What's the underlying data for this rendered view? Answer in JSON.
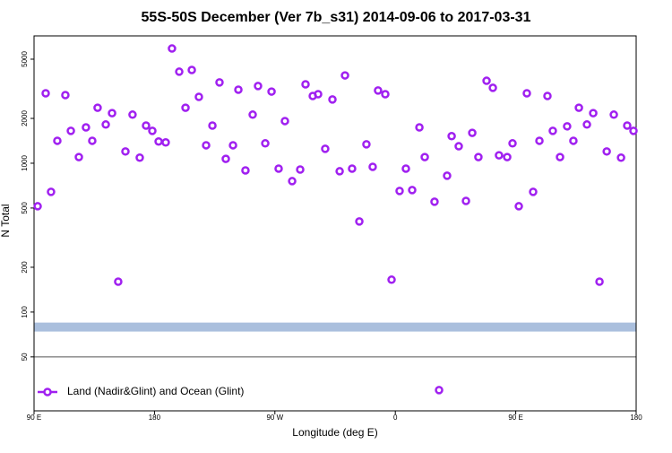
{
  "chart_data": {
    "type": "scatter",
    "title": "55S-50S December (Ver 7b_s31)   2014-09-06 to 2017-03-31",
    "x_label": "Longitude (deg E)",
    "y_label": "N Total",
    "log_y": true,
    "legend_position": "lower left",
    "xlim": [
      90,
      540
    ],
    "xticks": [
      {
        "value": 90,
        "label": "90 E"
      },
      {
        "value": 180,
        "label": "180"
      },
      {
        "value": 270,
        "label": "90 W"
      },
      {
        "value": 360,
        "label": "0"
      },
      {
        "value": 450,
        "label": "90 E"
      },
      {
        "value": 540,
        "label": "180"
      }
    ],
    "ylim": [
      21.7,
      7170
    ],
    "yticks": [
      50,
      100,
      200,
      500,
      1000,
      2000,
      5000
    ],
    "hline": 50,
    "band": {
      "ymin": 74,
      "ymax": 85,
      "color": "#aabfdd"
    },
    "series": [
      {
        "name": "Land (Nadir&Glint) and Ocean (Glint)",
        "color": "#a020f0",
        "x": [
          92.7,
          98.7,
          102.7,
          107.4,
          113.4,
          117.5,
          123.5,
          128.8,
          133.5,
          137.5,
          143.6,
          148.3,
          152.9,
          158.3,
          163.6,
          169.0,
          173.7,
          178.4,
          183.1,
          188.4,
          193.1,
          198.5,
          203.2,
          207.9,
          213.2,
          218.6,
          223.3,
          228.6,
          233.3,
          238.7,
          242.7,
          248.0,
          253.4,
          257.4,
          262.8,
          267.5,
          272.8,
          277.5,
          282.9,
          288.9,
          292.9,
          298.3,
          302.3,
          307.6,
          313.0,
          318.4,
          322.4,
          327.7,
          333.1,
          338.4,
          343.1,
          347.1,
          352.5,
          357.2,
          363.2,
          367.9,
          372.6,
          378.0,
          382.0,
          389.3,
          392.7,
          398.7,
          402.1,
          407.4,
          412.8,
          417.5,
          422.1,
          428.2,
          432.9,
          437.5,
          443.6,
          447.6,
          452.3,
          458.3,
          463.0,
          467.7,
          473.7,
          477.7,
          483.1,
          488.4,
          493.1,
          497.2,
          503.2,
          507.9,
          512.6,
          518.0,
          523.3,
          528.7,
          533.3,
          538.0
        ],
        "values": [
          514,
          2950,
          642,
          1415,
          2870,
          1650,
          1100,
          1740,
          1415,
          2360,
          1820,
          2170,
          160,
          1200,
          2120,
          1090,
          1790,
          1650,
          1400,
          1380,
          5900,
          4120,
          2360,
          4230,
          2790,
          1320,
          1790,
          3490,
          1070,
          1320,
          3120,
          895,
          2120,
          3300,
          1360,
          3030,
          920,
          1920,
          758,
          907,
          3390,
          2830,
          2910,
          1250,
          2680,
          883,
          3890,
          920,
          406,
          1340,
          946,
          3080,
          2910,
          165,
          651,
          920,
          660,
          1740,
          1100,
          551,
          29.9,
          824,
          1520,
          1300,
          558,
          1600,
          1100,
          3580,
          3210,
          1130,
          1100,
          1360,
          514,
          2950,
          642,
          1415,
          2830,
          1650,
          1100,
          1770,
          1415,
          2360,
          1820,
          2170,
          160,
          1200,
          2120,
          1090,
          1790,
          1650
        ]
      }
    ]
  }
}
